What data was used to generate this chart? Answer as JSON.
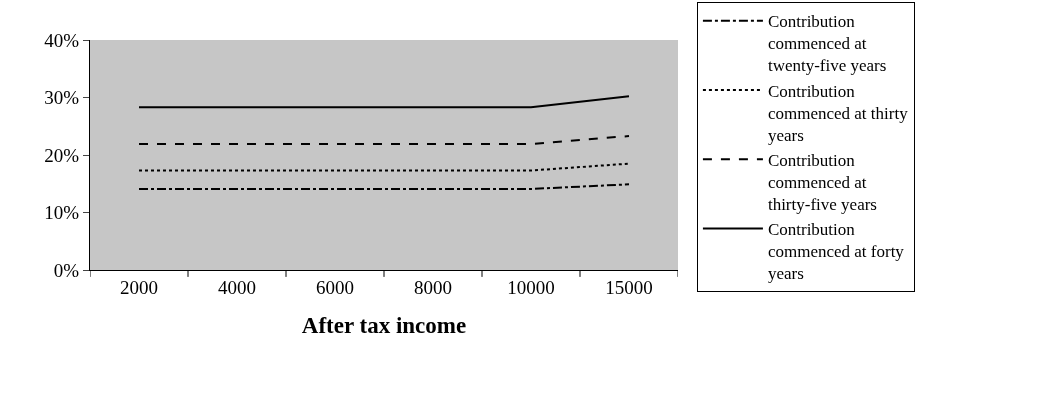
{
  "chart_data": {
    "type": "line",
    "xlabel": "After tax income",
    "categories": [
      "2000",
      "4000",
      "6000",
      "8000",
      "10000",
      "15000"
    ],
    "series": [
      {
        "name": "Contribution commenced at twenty-five years",
        "color": "#000000",
        "line_style": "dashdot",
        "values": [
          14.1,
          14.1,
          14.1,
          14.1,
          14.1,
          14.9
        ]
      },
      {
        "name": "Contribution commenced at thirty years",
        "color": "#000000",
        "line_style": "dotted",
        "values": [
          17.3,
          17.3,
          17.3,
          17.3,
          17.3,
          18.5
        ]
      },
      {
        "name": "Contribution commenced at thirty-five years",
        "color": "#000000",
        "line_style": "dashed",
        "values": [
          21.9,
          21.9,
          21.9,
          21.9,
          21.9,
          23.3
        ]
      },
      {
        "name": "Contribution commenced at forty years",
        "color": "#000000",
        "line_style": "solid",
        "values": [
          28.3,
          28.3,
          28.3,
          28.3,
          28.3,
          30.2
        ]
      }
    ],
    "ylim": [
      0,
      40
    ],
    "yticks": [
      {
        "value": 0,
        "label": "0%"
      },
      {
        "value": 10,
        "label": "10%"
      },
      {
        "value": 20,
        "label": "20%"
      },
      {
        "value": 30,
        "label": "30%"
      },
      {
        "value": 40,
        "label": "40%"
      }
    ],
    "grid": false,
    "legend": "right",
    "marker": "none"
  }
}
